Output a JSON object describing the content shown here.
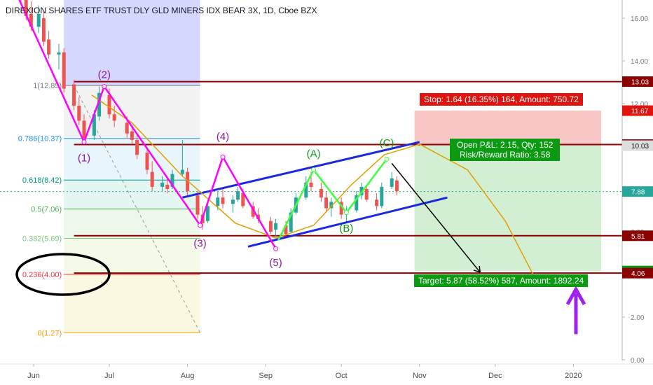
{
  "title": "DIREXION SHARES ETF TRUST DLY GLD MINERS IDX BEAR 3X, 1D, Cboe BZX",
  "colors": {
    "background": "#ffffff",
    "candle_up": "#26a69a",
    "candle_down": "#ef5350",
    "level_line": "#8b0000",
    "wave_magenta": "#ff00ff",
    "wave_green": "#3dff3d",
    "channel_blue": "#1c28e0",
    "arc_orange": "#e0a000",
    "stop_zone": "#f8b8b8",
    "target_zone": "#c8ebc8",
    "badge_red": "#e0140f",
    "badge_green": "#0c9a12",
    "arrow_purple": "#a020f0"
  },
  "chart_data": {
    "type": "candlestick",
    "title": "DIREXION SHARES ETF TRUST DLY GLD MINERS IDX BEAR 3X, 1D, Cboe BZX",
    "x_ticks": [
      "Jun",
      "Jul",
      "Aug",
      "Sep",
      "Oct",
      "Nov",
      "Dec",
      "2020"
    ],
    "y_ticks": [
      "16.00",
      "14.00",
      "12.00",
      "10.00",
      "8.00",
      "6.00",
      "4.00",
      "2.00",
      "0.00"
    ],
    "ylim": [
      0,
      17
    ],
    "price_labels": [
      {
        "text": "13.03",
        "value": 13.03,
        "color": "#8b0000"
      },
      {
        "text": "11.67",
        "value": 11.67,
        "color": "#e0140f"
      },
      {
        "text": "10.08",
        "value": 10.08,
        "color": "#8b0000"
      },
      {
        "text": "10.03",
        "value": 10.03,
        "color": "#dddddd"
      },
      {
        "text": "7.88",
        "value": 7.88,
        "color": "#26a69a"
      },
      {
        "text": "5.81",
        "value": 5.81,
        "color": "#8b0000"
      },
      {
        "text": "4.16",
        "value": 4.16,
        "color": "#0c9a12"
      },
      {
        "text": "4.06",
        "value": 4.06,
        "color": "#8b0000"
      }
    ],
    "horizontal_levels": [
      13.03,
      10.08,
      5.81,
      4.06
    ],
    "fib_levels": [
      {
        "label": "1(12.85)",
        "value": 12.85,
        "color": "#787b86"
      },
      {
        "label": "0.786(10.37)",
        "value": 10.37,
        "color": "#2196f3"
      },
      {
        "label": "0.618(8.42)",
        "value": 8.42,
        "color": "#009688"
      },
      {
        "label": "0.5(7.06)",
        "value": 7.06,
        "color": "#4caf50"
      },
      {
        "label": "0.382(5.69)",
        "value": 5.69,
        "color": "#81c784"
      },
      {
        "label": "0.236(4.00)",
        "value": 4.0,
        "color": "#f23645"
      },
      {
        "label": "0(1.27)",
        "value": 1.27,
        "color": "#ff9800"
      }
    ],
    "wave_labels": {
      "impulse": [
        "(1)",
        "(2)",
        "(3)",
        "(4)",
        "(5)"
      ],
      "corrective": [
        "(A)",
        "(B)",
        "(C)"
      ]
    },
    "position": {
      "stop": "Stop: 1.64 (16.35%) 164, Amount: 750.72",
      "pnl_line1": "Open P&L: 2.15, Qty: 152",
      "pnl_line2": "Risk/Reward Ratio: 3.58",
      "target": "Target: 5.87 (58.52%) 587, Amount: 1892.24",
      "entry": 10.03,
      "stop_price": 11.67,
      "target_price": 4.16
    },
    "candles": [
      {
        "d": "2019-05-27",
        "o": 17.2,
        "h": 17.6,
        "l": 16.6,
        "c": 16.9
      },
      {
        "d": "2019-05-29",
        "o": 16.9,
        "h": 17.1,
        "l": 15.9,
        "c": 16.1
      },
      {
        "d": "2019-05-31",
        "o": 16.2,
        "h": 16.8,
        "l": 15.4,
        "c": 15.6
      },
      {
        "d": "2019-06-03",
        "o": 15.6,
        "h": 16.6,
        "l": 15.3,
        "c": 16.2
      },
      {
        "d": "2019-06-05",
        "o": 16.0,
        "h": 16.3,
        "l": 14.7,
        "c": 14.9
      },
      {
        "d": "2019-06-07",
        "o": 15.0,
        "h": 15.4,
        "l": 14.1,
        "c": 14.3
      },
      {
        "d": "2019-06-11",
        "o": 14.3,
        "h": 14.8,
        "l": 13.6,
        "c": 14.4
      },
      {
        "d": "2019-06-13",
        "o": 14.4,
        "h": 14.6,
        "l": 12.5,
        "c": 12.7
      },
      {
        "d": "2019-06-17",
        "o": 12.9,
        "h": 13.1,
        "l": 11.7,
        "c": 11.9
      },
      {
        "d": "2019-06-19",
        "o": 11.9,
        "h": 12.3,
        "l": 11.0,
        "c": 11.2
      },
      {
        "d": "2019-06-21",
        "o": 11.2,
        "h": 11.5,
        "l": 10.2,
        "c": 10.4
      },
      {
        "d": "2019-06-25",
        "o": 10.5,
        "h": 11.7,
        "l": 10.3,
        "c": 11.5
      },
      {
        "d": "2019-06-27",
        "o": 11.4,
        "h": 12.8,
        "l": 11.2,
        "c": 12.5
      },
      {
        "d": "2019-07-01",
        "o": 12.4,
        "h": 12.7,
        "l": 11.3,
        "c": 11.5
      },
      {
        "d": "2019-07-03",
        "o": 11.5,
        "h": 11.9,
        "l": 10.9,
        "c": 11.2
      },
      {
        "d": "2019-07-08",
        "o": 11.1,
        "h": 11.4,
        "l": 10.4,
        "c": 10.6
      },
      {
        "d": "2019-07-10",
        "o": 10.7,
        "h": 11.0,
        "l": 10.1,
        "c": 10.3
      },
      {
        "d": "2019-07-12",
        "o": 10.3,
        "h": 10.6,
        "l": 9.4,
        "c": 9.6
      },
      {
        "d": "2019-07-16",
        "o": 9.7,
        "h": 9.9,
        "l": 8.7,
        "c": 8.9
      },
      {
        "d": "2019-07-18",
        "o": 8.8,
        "h": 9.3,
        "l": 7.9,
        "c": 8.1
      },
      {
        "d": "2019-07-22",
        "o": 8.1,
        "h": 8.6,
        "l": 7.9,
        "c": 8.3
      },
      {
        "d": "2019-07-24",
        "o": 8.2,
        "h": 8.5,
        "l": 7.8,
        "c": 8.0
      },
      {
        "d": "2019-07-26",
        "o": 8.1,
        "h": 8.9,
        "l": 8.0,
        "c": 8.7
      },
      {
        "d": "2019-07-30",
        "o": 8.7,
        "h": 10.3,
        "l": 8.6,
        "c": 8.9
      },
      {
        "d": "2019-08-01",
        "o": 8.8,
        "h": 9.0,
        "l": 7.7,
        "c": 7.9
      },
      {
        "d": "2019-08-05",
        "o": 7.7,
        "h": 7.9,
        "l": 6.6,
        "c": 6.8
      },
      {
        "d": "2019-08-07",
        "o": 6.8,
        "h": 7.2,
        "l": 6.1,
        "c": 6.4
      },
      {
        "d": "2019-08-09",
        "o": 6.5,
        "h": 7.4,
        "l": 6.4,
        "c": 7.2
      },
      {
        "d": "2019-08-13",
        "o": 7.2,
        "h": 7.9,
        "l": 7.0,
        "c": 7.6
      },
      {
        "d": "2019-08-15",
        "o": 7.6,
        "h": 8.0,
        "l": 7.1,
        "c": 7.3
      },
      {
        "d": "2019-08-19",
        "o": 7.3,
        "h": 7.7,
        "l": 6.9,
        "c": 7.5
      },
      {
        "d": "2019-08-21",
        "o": 7.5,
        "h": 8.1,
        "l": 7.4,
        "c": 7.9
      },
      {
        "d": "2019-08-23",
        "o": 7.8,
        "h": 8.0,
        "l": 7.1,
        "c": 7.2
      },
      {
        "d": "2019-08-27",
        "o": 7.2,
        "h": 7.4,
        "l": 6.6,
        "c": 6.7
      },
      {
        "d": "2019-08-29",
        "o": 6.8,
        "h": 7.1,
        "l": 6.4,
        "c": 6.6
      },
      {
        "d": "2019-09-03",
        "o": 6.5,
        "h": 6.7,
        "l": 5.9,
        "c": 6.0
      },
      {
        "d": "2019-09-05",
        "o": 6.1,
        "h": 6.6,
        "l": 5.8,
        "c": 6.4
      },
      {
        "d": "2019-09-09",
        "o": 6.3,
        "h": 6.5,
        "l": 5.7,
        "c": 5.9
      },
      {
        "d": "2019-09-11",
        "o": 6.0,
        "h": 7.1,
        "l": 5.9,
        "c": 6.9
      },
      {
        "d": "2019-09-13",
        "o": 6.9,
        "h": 7.8,
        "l": 6.8,
        "c": 7.6
      },
      {
        "d": "2019-09-17",
        "o": 7.6,
        "h": 8.6,
        "l": 7.5,
        "c": 8.3
      },
      {
        "d": "2019-09-19",
        "o": 8.3,
        "h": 8.8,
        "l": 7.9,
        "c": 8.1
      },
      {
        "d": "2019-09-23",
        "o": 8.0,
        "h": 8.3,
        "l": 7.4,
        "c": 7.6
      },
      {
        "d": "2019-09-25",
        "o": 7.6,
        "h": 7.9,
        "l": 6.9,
        "c": 7.1
      },
      {
        "d": "2019-09-27",
        "o": 7.1,
        "h": 7.6,
        "l": 6.7,
        "c": 7.4
      },
      {
        "d": "2019-10-01",
        "o": 7.4,
        "h": 7.6,
        "l": 6.6,
        "c": 6.8
      },
      {
        "d": "2019-10-03",
        "o": 6.8,
        "h": 7.2,
        "l": 6.4,
        "c": 7.0
      },
      {
        "d": "2019-10-07",
        "o": 7.0,
        "h": 7.9,
        "l": 6.9,
        "c": 7.7
      },
      {
        "d": "2019-10-09",
        "o": 7.7,
        "h": 8.3,
        "l": 7.5,
        "c": 8.1
      },
      {
        "d": "2019-10-11",
        "o": 8.0,
        "h": 8.2,
        "l": 7.4,
        "c": 7.5
      },
      {
        "d": "2019-10-15",
        "o": 7.5,
        "h": 7.8,
        "l": 7.0,
        "c": 7.2
      },
      {
        "d": "2019-10-17",
        "o": 7.2,
        "h": 8.3,
        "l": 7.1,
        "c": 8.1
      },
      {
        "d": "2019-10-21",
        "o": 8.1,
        "h": 8.8,
        "l": 8.0,
        "c": 8.5
      },
      {
        "d": "2019-10-23",
        "o": 8.4,
        "h": 8.6,
        "l": 7.7,
        "c": 7.9
      }
    ]
  }
}
